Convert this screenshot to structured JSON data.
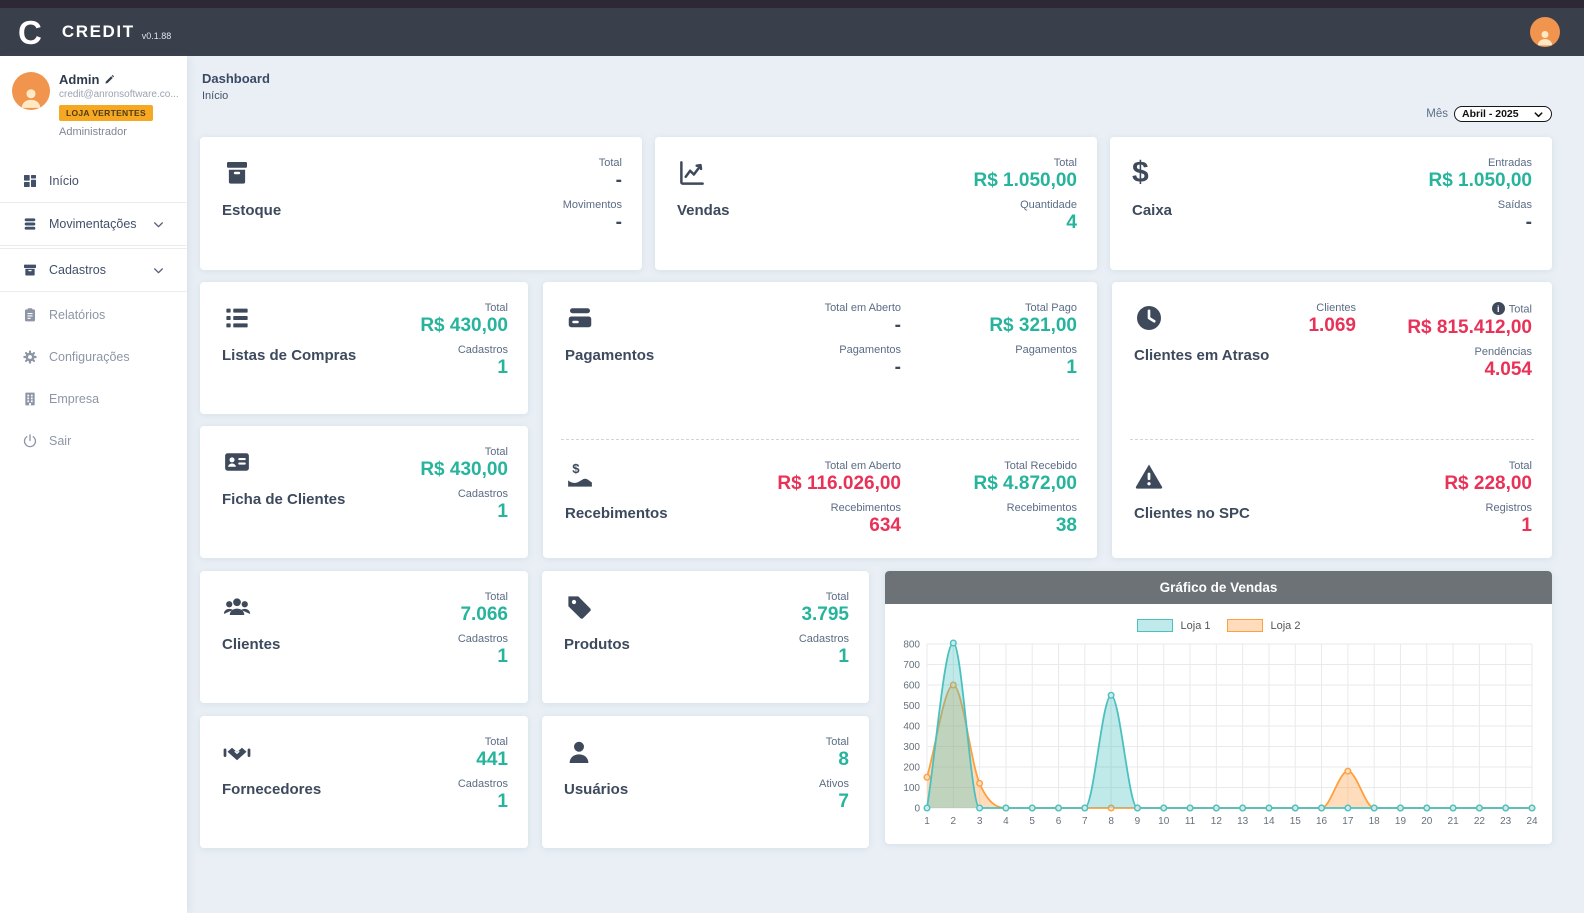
{
  "header": {
    "logo_letter": "C",
    "app_name": "CREDIT",
    "version": "v0.1.88"
  },
  "sidebar": {
    "user": {
      "name": "Admin",
      "email": "credit@anronsoftware.co...",
      "badge": "LOJA VERTENTES",
      "role": "Administrador"
    },
    "items": [
      {
        "label": "Início"
      },
      {
        "label": "Movimentações"
      },
      {
        "label": "Cadastros"
      },
      {
        "label": "Relatórios"
      },
      {
        "label": "Configurações"
      },
      {
        "label": "Empresa"
      },
      {
        "label": "Sair"
      }
    ]
  },
  "breadcrumb": {
    "title": "Dashboard",
    "subtitle": "Início"
  },
  "filter": {
    "label": "Mês",
    "value": "Abril - 2025"
  },
  "icons": {
    "info_glyph": "i",
    "dollar_glyph": "$"
  },
  "colors": {
    "green": "#26b49c",
    "red": "#e93257",
    "header": "#3a3f4c",
    "badge": "#f7a823"
  },
  "cards": {
    "estoque": {
      "title": "Estoque",
      "metrics": [
        {
          "label": "Total",
          "value": "-"
        },
        {
          "label": "Movimentos",
          "value": "-"
        }
      ]
    },
    "vendas": {
      "title": "Vendas",
      "metrics": [
        {
          "label": "Total",
          "value": "R$ 1.050,00"
        },
        {
          "label": "Quantidade",
          "value": "4"
        }
      ]
    },
    "caixa": {
      "title": "Caixa",
      "metrics": [
        {
          "label": "Entradas",
          "value": "R$ 1.050,00"
        },
        {
          "label": "Saídas",
          "value": "-"
        }
      ]
    },
    "listas": {
      "title": "Listas de Compras",
      "metrics": [
        {
          "label": "Total",
          "value": "R$ 430,00"
        },
        {
          "label": "Cadastros",
          "value": "1"
        }
      ]
    },
    "ficha": {
      "title": "Ficha de Clientes",
      "metrics": [
        {
          "label": "Total",
          "value": "R$ 430,00"
        },
        {
          "label": "Cadastros",
          "value": "1"
        }
      ]
    },
    "pagamentos": {
      "title": "Pagamentos",
      "col1": [
        {
          "label": "Total em Aberto",
          "value": "-"
        },
        {
          "label": "Pagamentos",
          "value": "-"
        }
      ],
      "col2": [
        {
          "label": "Total Pago",
          "value": "R$ 321,00"
        },
        {
          "label": "Pagamentos",
          "value": "1"
        }
      ]
    },
    "recebimentos": {
      "title": "Recebimentos",
      "col1": [
        {
          "label": "Total em Aberto",
          "value": "R$ 116.026,00"
        },
        {
          "label": "Recebimentos",
          "value": "634"
        }
      ],
      "col2": [
        {
          "label": "Total Recebido",
          "value": "R$ 4.872,00"
        },
        {
          "label": "Recebimentos",
          "value": "38"
        }
      ]
    },
    "clientes_atraso": {
      "title": "Clientes em Atraso",
      "col1": [
        {
          "label": "Clientes",
          "value": "1.069"
        }
      ],
      "col2": [
        {
          "label": "Total",
          "value": "R$ 815.412,00"
        },
        {
          "label": "Pendências",
          "value": "4.054"
        }
      ]
    },
    "clientes_spc": {
      "title": "Clientes no SPC",
      "metrics": [
        {
          "label": "Total",
          "value": "R$ 228,00"
        },
        {
          "label": "Registros",
          "value": "1"
        }
      ]
    },
    "clientes": {
      "title": "Clientes",
      "metrics": [
        {
          "label": "Total",
          "value": "7.066"
        },
        {
          "label": "Cadastros",
          "value": "1"
        }
      ]
    },
    "produtos": {
      "title": "Produtos",
      "metrics": [
        {
          "label": "Total",
          "value": "3.795"
        },
        {
          "label": "Cadastros",
          "value": "1"
        }
      ]
    },
    "fornecedores": {
      "title": "Fornecedores",
      "metrics": [
        {
          "label": "Total",
          "value": "441"
        },
        {
          "label": "Cadastros",
          "value": "1"
        }
      ]
    },
    "usuarios": {
      "title": "Usuários",
      "metrics": [
        {
          "label": "Total",
          "value": "8"
        },
        {
          "label": "Ativos",
          "value": "7"
        }
      ]
    }
  },
  "chart_data": {
    "type": "line",
    "title": "Gráfico de Vendas",
    "x": [
      1,
      2,
      3,
      4,
      5,
      6,
      7,
      8,
      9,
      10,
      11,
      12,
      13,
      14,
      15,
      16,
      17,
      18,
      19,
      20,
      21,
      22,
      23,
      24
    ],
    "series": [
      {
        "name": "Loja 1",
        "color": "#4bc0c0",
        "fill": "rgba(75,192,192,0.35)",
        "point_fill": "#cdeaea",
        "values": [
          0,
          805,
          0,
          0,
          0,
          0,
          0,
          550,
          0,
          0,
          0,
          0,
          0,
          0,
          0,
          0,
          0,
          0,
          0,
          0,
          0,
          0,
          0,
          0
        ]
      },
      {
        "name": "Loja 2",
        "color": "#ff9f40",
        "fill": "rgba(255,159,64,0.35)",
        "point_fill": "#ffdfbe",
        "values": [
          150,
          600,
          120,
          0,
          0,
          0,
          0,
          0,
          0,
          0,
          0,
          0,
          0,
          0,
          0,
          0,
          180,
          0,
          0,
          0,
          0,
          0,
          0,
          0
        ]
      }
    ],
    "ylim": [
      0,
      800
    ],
    "ytick": 100,
    "legend_position": "top",
    "grid": true,
    "xlabel": "",
    "ylabel": ""
  }
}
